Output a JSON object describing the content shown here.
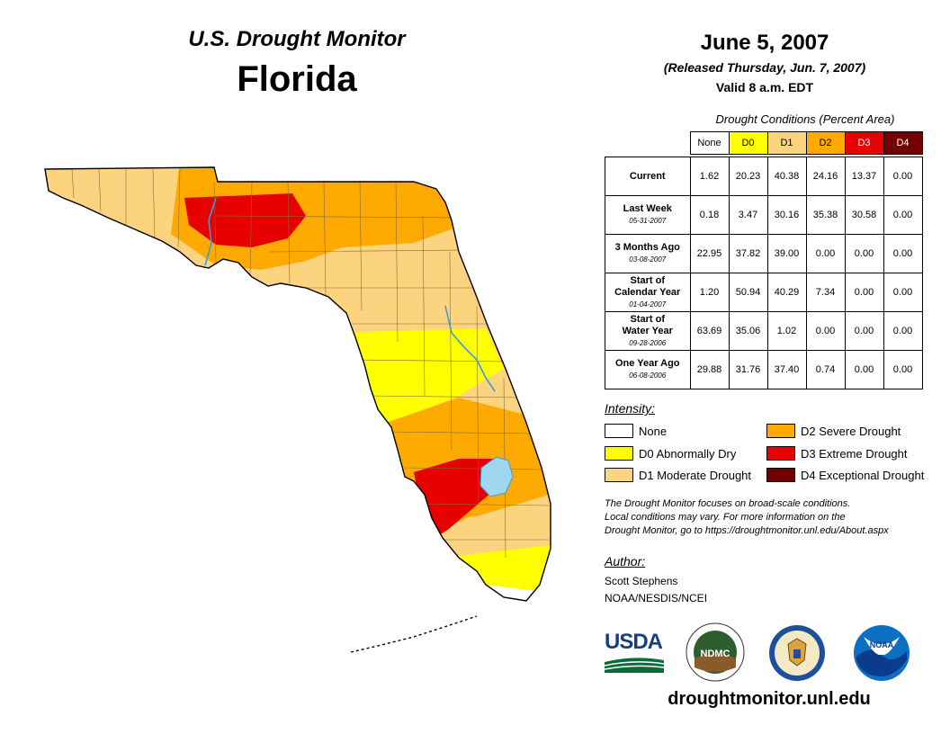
{
  "header": {
    "monitor_title": "U.S. Drought Monitor",
    "state": "Florida",
    "date": "June 5, 2007",
    "released": "(Released Thursday, Jun. 7, 2007)",
    "valid": "Valid 8 a.m. EDT"
  },
  "table": {
    "caption": "Drought Conditions (Percent Area)",
    "columns": [
      {
        "label": "None",
        "bg": "#ffffff",
        "fg": "#000000"
      },
      {
        "label": "D0",
        "bg": "#ffff00",
        "fg": "#000000"
      },
      {
        "label": "D1",
        "bg": "#fcd37f",
        "fg": "#000000"
      },
      {
        "label": "D2",
        "bg": "#ffaa00",
        "fg": "#000000"
      },
      {
        "label": "D3",
        "bg": "#e60000",
        "fg": "#ffffff"
      },
      {
        "label": "D4",
        "bg": "#730000",
        "fg": "#ffffff"
      }
    ],
    "rows": [
      {
        "label": "Current",
        "label2": "",
        "date": "",
        "values": [
          "1.62",
          "20.23",
          "40.38",
          "24.16",
          "13.37",
          "0.00"
        ]
      },
      {
        "label": "Last Week",
        "label2": "",
        "date": "05-31-2007",
        "values": [
          "0.18",
          "3.47",
          "30.16",
          "35.38",
          "30.58",
          "0.00"
        ]
      },
      {
        "label": "3 Months Ago",
        "label2": "",
        "date": "03-08-2007",
        "values": [
          "22.95",
          "37.82",
          "39.00",
          "0.00",
          "0.00",
          "0.00"
        ]
      },
      {
        "label": "Start of",
        "label2": "Calendar Year",
        "date": "01-04-2007",
        "values": [
          "1.20",
          "50.94",
          "40.29",
          "7.34",
          "0.00",
          "0.00"
        ]
      },
      {
        "label": "Start of",
        "label2": "Water Year",
        "date": "09-28-2006",
        "values": [
          "63.69",
          "35.06",
          "1.02",
          "0.00",
          "0.00",
          "0.00"
        ]
      },
      {
        "label": "One Year Ago",
        "label2": "",
        "date": "06-08-2006",
        "values": [
          "29.88",
          "31.76",
          "37.40",
          "0.74",
          "0.00",
          "0.00"
        ]
      }
    ]
  },
  "legend": {
    "title": "Intensity:",
    "items": [
      {
        "label": "None",
        "color": "#ffffff"
      },
      {
        "label": "D0 Abnormally Dry",
        "color": "#ffff00"
      },
      {
        "label": "D1 Moderate Drought",
        "color": "#fcd37f"
      },
      {
        "label": "D2 Severe Drought",
        "color": "#ffaa00"
      },
      {
        "label": "D3 Extreme Drought",
        "color": "#e60000"
      },
      {
        "label": "D4 Exceptional Drought",
        "color": "#730000"
      }
    ]
  },
  "note": {
    "line1": "The Drought Monitor focuses on broad-scale conditions.",
    "line2": "Local conditions may vary. For more information on the",
    "line3": "Drought Monitor, go to https://droughtmonitor.unl.edu/About.aspx"
  },
  "author": {
    "title": "Author:",
    "name": "Scott Stephens",
    "org": "NOAA/NESDIS/NCEI"
  },
  "logos": {
    "usda": "USDA",
    "ndmc": "NDMC",
    "noaa": "NOAA"
  },
  "footer": {
    "url": "droughtmonitor.unl.edu"
  },
  "map": {
    "lake_color": "#9fd7f0",
    "river_color": "#3a9bdc",
    "county_line_color": "#8a6a3a"
  }
}
